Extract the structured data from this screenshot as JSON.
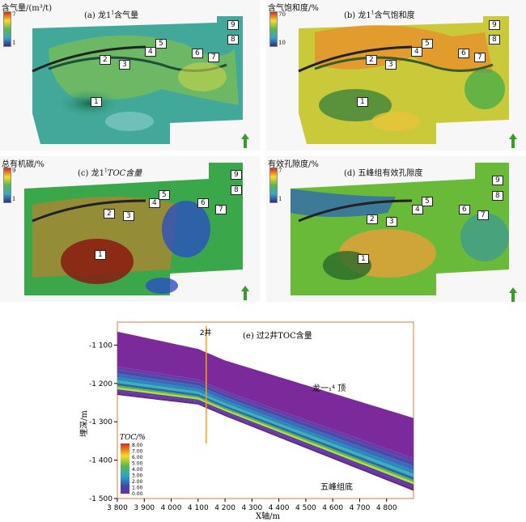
{
  "panels": [
    {
      "id": "a",
      "title": "(a) 龙1",
      "title_sup": "1",
      "title_rest": "含气量",
      "legend_title": "含气量/(m³/t)",
      "ticks": [
        "7",
        "1"
      ]
    },
    {
      "id": "b",
      "title": "(b) 龙1",
      "title_sup": "1",
      "title_rest": "含气饱和度",
      "legend_title": "含气饱和度/%",
      "ticks": [
        "70",
        "10"
      ]
    },
    {
      "id": "c",
      "title": "(c) 龙1",
      "title_sup": "1",
      "title_rest": "TOC含量",
      "legend_title": "总有机碳/%",
      "ticks": [
        "9",
        "1"
      ]
    },
    {
      "id": "d",
      "title": "(d) 五峰组有效孔隙度",
      "title_sup": "",
      "title_rest": "",
      "legend_title": "有效孔隙度/%",
      "ticks": [
        "7",
        "1"
      ]
    }
  ],
  "well_labels": [
    "1",
    "2",
    "3",
    "4",
    "5",
    "6",
    "7",
    "8",
    "9"
  ],
  "section": {
    "title": "(e) 过2井TOC含量",
    "well_label": "2井",
    "top_label": "龙一₁⁴ 顶",
    "bottom_label": "五峰组底",
    "ylabel": "埋深/m",
    "xlabel": "X轴/m",
    "legend_title": "TOC/%"
  },
  "chart_data": {
    "type": "area",
    "xlabel": "X轴/m",
    "ylabel": "埋深/m",
    "xlim": [
      3800,
      4900
    ],
    "ylim": [
      -1500,
      -1040
    ],
    "x_ticks": [
      "3 800",
      "3 900",
      "4 000",
      "4 100",
      "4 200",
      "4 300",
      "4 400",
      "4 500",
      "4 600",
      "4 700",
      "4 800"
    ],
    "y_ticks": [
      "-1 100",
      "-1 200",
      "-1 300",
      "-1 400",
      "-1 500"
    ],
    "y_tick_values": [
      -1100,
      -1200,
      -1300,
      -1400,
      -1500
    ],
    "x_tick_values": [
      3800,
      3900,
      4000,
      4100,
      4200,
      4300,
      4400,
      4500,
      4600,
      4700,
      4800
    ],
    "well_x": 4130,
    "top_surface": {
      "x": [
        3800,
        4100,
        4200,
        4900
      ],
      "y": [
        -1065,
        -1110,
        -1140,
        -1290
      ]
    },
    "base_surface": {
      "x": [
        3800,
        4100,
        4200,
        4900
      ],
      "y": [
        -1230,
        -1255,
        -1285,
        -1480
      ]
    },
    "legend_ticks": [
      "8.00",
      "7.00",
      "6.00",
      "5.00",
      "4.00",
      "3.00",
      "2.00",
      "1.00",
      "0.00"
    ],
    "legend_values": [
      8,
      7,
      6,
      5,
      4,
      3,
      2,
      1,
      0
    ]
  }
}
